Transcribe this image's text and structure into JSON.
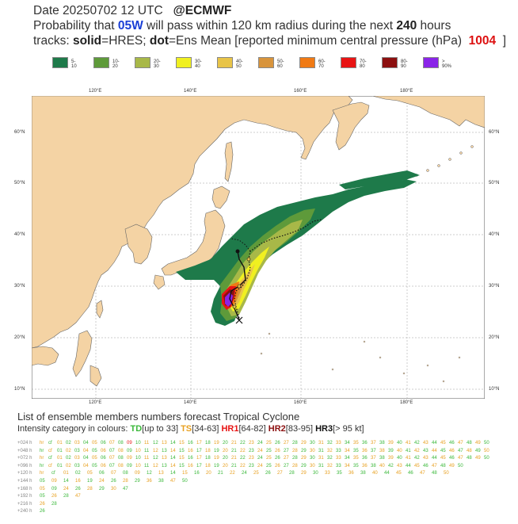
{
  "header": {
    "line1_date": "Date 20250702 12 UTC",
    "line1_src": "@ECMWF",
    "line2_pre": "Probability that",
    "line2_storm": "05W",
    "line2_mid": "will pass within 120 km radius during the next",
    "line2_hours": "240",
    "line2_post": "hours",
    "line3_a": "tracks:",
    "line3_b": "solid",
    "line3_c": "=HRES;",
    "line3_d": "dot",
    "line3_e": "=Ens Mean [reported minimum central pressure (hPa)",
    "line3_p": "1004",
    "line3_f": "]"
  },
  "legend": [
    {
      "label": "5-10",
      "color": "#1e7a4a"
    },
    {
      "label": "10-20",
      "color": "#5e9a3a"
    },
    {
      "label": "20-30",
      "color": "#a8b848"
    },
    {
      "label": "30-40",
      "color": "#f0f020"
    },
    {
      "label": "40-50",
      "color": "#e8c448"
    },
    {
      "label": "50-60",
      "color": "#d8943c"
    },
    {
      "label": "60-70",
      "color": "#f07a14"
    },
    {
      "label": "70-80",
      "color": "#e81414"
    },
    {
      "label": "80-90",
      "color": "#8c1010"
    },
    {
      "label": "> 90%",
      "color": "#8a24e8"
    }
  ],
  "axes": {
    "lon_top": [
      "120°E",
      "140°E",
      "160°E",
      "180°E"
    ],
    "lon_bottom": [
      "120°E",
      "140°E",
      "160°E",
      "180°E"
    ],
    "lat_left": [
      "60°N",
      "50°N",
      "40°N",
      "30°N",
      "20°N",
      "10°N"
    ],
    "lat_right": [
      "60°N",
      "50°N",
      "40°N",
      "30°N",
      "20°N",
      "10°N"
    ]
  },
  "colors": {
    "land": "#f4d3a4",
    "sea": "#ffffff",
    "coast": "#666666",
    "grid": "#9a9a9a"
  },
  "ensemble": {
    "title": "List of ensemble members numbers forecast Tropical Cyclone",
    "intensity_pre": "Intensity category in colours:",
    "td": "TD",
    "td_range": "[up to 33]",
    "ts": "TS",
    "ts_range": "[34-63]",
    "hr1": "HR1",
    "hr1_range": "[64-82]",
    "hr2": "HR2",
    "hr2_range": "[83-95]",
    "hr3": "HR3",
    "hr3_range": "[> 95 kt]",
    "rows": [
      {
        "label": "+024 h",
        "members": "hr cf 01 02 03 04 05 06 07 08 09 10 11 12 13 14 15 16 17 18 19 20 21 22 23 24 25 26 27 28 29 30 31 32 33 34 35 36 37 38 39 40 41 42 43 44 45 46 47 48 49 50"
      },
      {
        "label": "+048 h",
        "members": "hr cf 01 02 03 04 05 06 07 08 09 10 11 12 13 14 15 16 17 18 19 20 21 22 23 24 25 26 27 28 29 30 31 32 33 34 35 36 37 38 39 40 41 42 43 44 45 46 47 48 49 50"
      },
      {
        "label": "+072 h",
        "members": "hr cf 01 02 03 04 05 06 07 08 09 10 11 12 13 14 15 16 17 18 19 20 21 22 23 24 25 26 27 28 29 30 31 32 33 34 35 36 37 38 39 40 41 42 43 44 45 46 47 48 49 50"
      },
      {
        "label": "+096 h",
        "members": "hr cf 01 02 03 04 05 06 07 08 09 10 11 12 13 14 15 16 17 18 19 20 21 22 23 24 25 26 27 28 29 30 31 32 33 34 35 36 38 40 42 43 44 45 46 47 48 49 50"
      },
      {
        "label": "+120 h",
        "members": "hr cf 01 02 05 06 07 08 09 12 13 14 15 16 20 21 22 24 25 26 27 28 29 30 33 35 36 38 40 44 45 46 47 48 50"
      },
      {
        "label": "+144 h",
        "members": "05 09 14 16 19 24 26 28 29 36 38 47 50"
      },
      {
        "label": "+168 h",
        "members": "05 09 24 26 28 29 30 47"
      },
      {
        "label": "+192 h",
        "members": "05 26 28 47"
      },
      {
        "label": "+216 h",
        "members": "26 28"
      },
      {
        "label": "+240 h",
        "members": "26"
      }
    ]
  }
}
